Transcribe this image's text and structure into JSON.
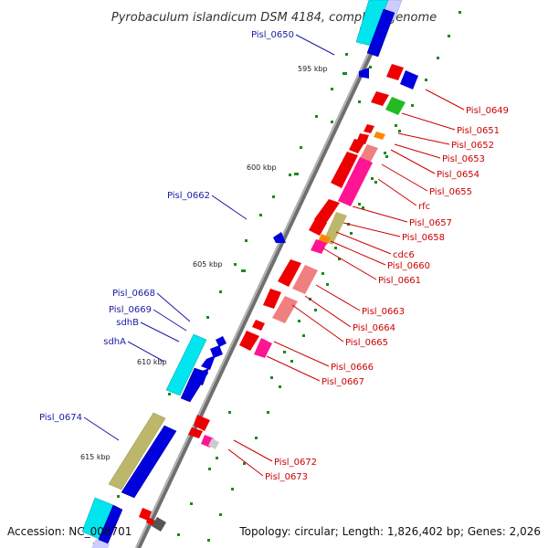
{
  "title": "Pyrobaculum islandicum DSM 4184, complete genome",
  "footer": {
    "accession": "Accession: NC_008701",
    "topology": "Topology: circular; Length: 1,826,402 bp; Genes: 2,026"
  },
  "colors": {
    "forward_red": "#ee0000",
    "pink": "#f08080",
    "magenta": "#ff1493",
    "green": "#22bb22",
    "orange": "#ff8800",
    "blue": "#0000dd",
    "cyan": "#00e5ee",
    "khaki": "#bdb76b",
    "lavender": "#ccccff",
    "backbone": "#8c8c8c",
    "dots": "#1a8a1a"
  },
  "ticks": [
    {
      "label": "595 kbp"
    },
    {
      "label": "600 kbp"
    },
    {
      "label": "605 kbp"
    },
    {
      "label": "610 kbp"
    },
    {
      "label": "615 kbp"
    }
  ],
  "right_labels": [
    {
      "label": "Pisl_0649"
    },
    {
      "label": "Pisl_0651"
    },
    {
      "label": "Pisl_0652"
    },
    {
      "label": "Pisl_0653"
    },
    {
      "label": "Pisl_0654"
    },
    {
      "label": "Pisl_0655"
    },
    {
      "label": "rfc"
    },
    {
      "label": "Pisl_0657"
    },
    {
      "label": "Pisl_0658"
    },
    {
      "label": "cdc6"
    },
    {
      "label": "Pisl_0660"
    },
    {
      "label": "Pisl_0661"
    },
    {
      "label": "Pisl_0663"
    },
    {
      "label": "Pisl_0664"
    },
    {
      "label": "Pisl_0665"
    },
    {
      "label": "Pisl_0666"
    },
    {
      "label": "Pisl_0667"
    },
    {
      "label": "Pisl_0672"
    },
    {
      "label": "Pisl_0673"
    }
  ],
  "left_labels": [
    {
      "label": "Pisl_0650"
    },
    {
      "label": "Pisl_0662"
    },
    {
      "label": "Pisl_0668"
    },
    {
      "label": "Pisl_0669"
    },
    {
      "label": "sdhB"
    },
    {
      "label": "sdhA"
    },
    {
      "label": "Pisl_0674"
    }
  ]
}
